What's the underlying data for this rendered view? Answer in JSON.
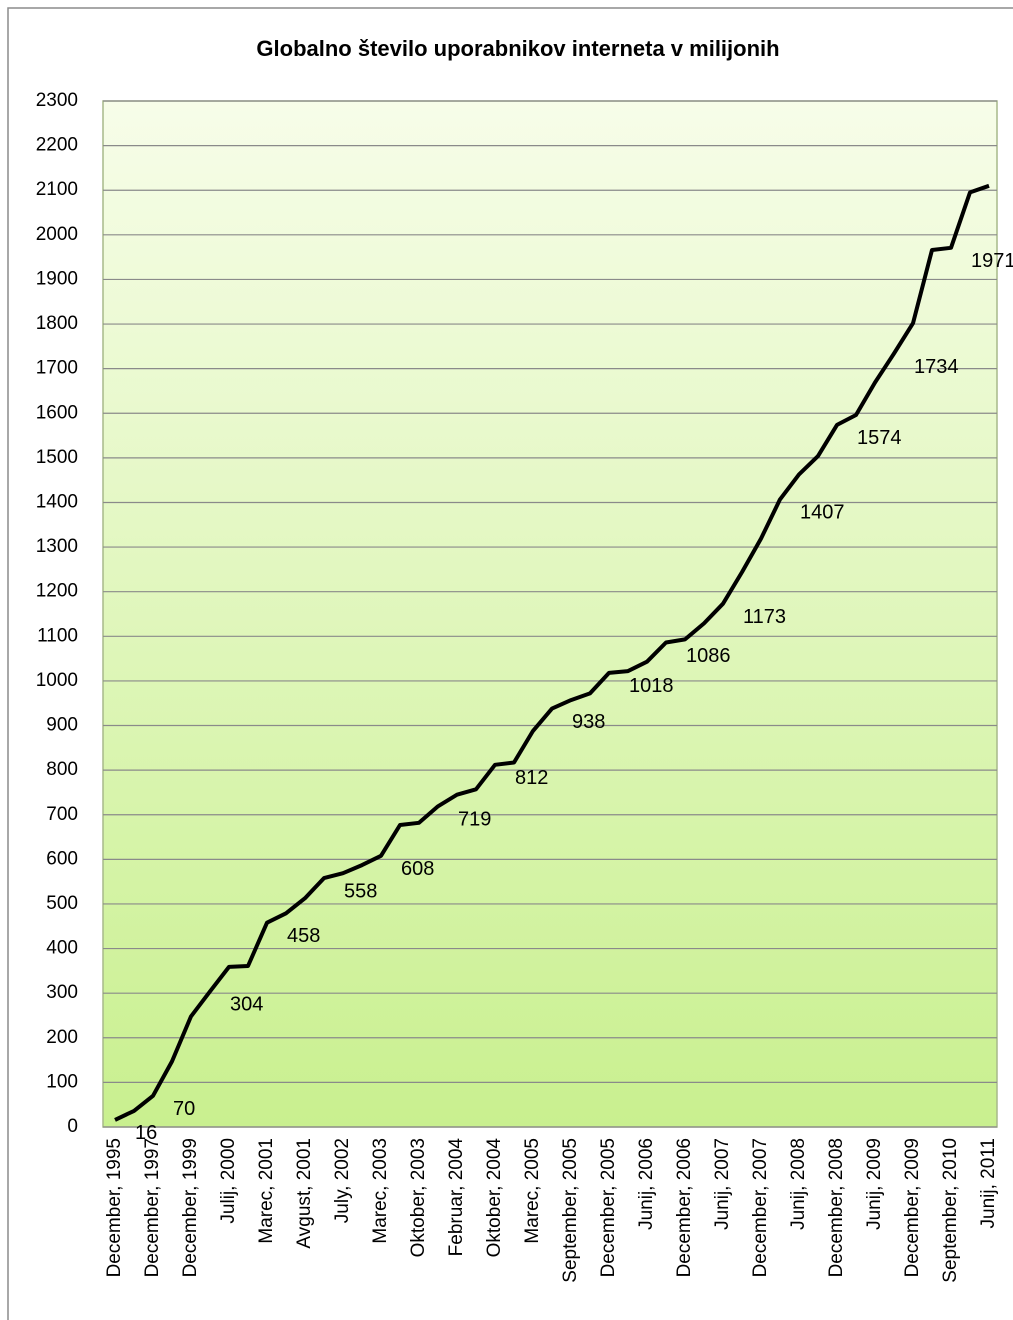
{
  "chart_data": {
    "type": "line",
    "title": "Globalno število uporabnikov interneta v milijonih",
    "categories": [
      "December, 1995",
      null,
      "December, 1997",
      null,
      "December, 1999",
      null,
      "Julij, 2000",
      null,
      "Marec, 2001",
      null,
      "Avgust, 2001",
      null,
      "July, 2002",
      null,
      "Marec, 2003",
      null,
      "Oktober, 2003",
      null,
      "Februar, 2004",
      null,
      "Oktober, 2004",
      null,
      "Marec, 2005",
      null,
      "September, 2005",
      null,
      "December, 2005",
      null,
      "Junij, 2006",
      null,
      "December, 2006",
      null,
      "Junij, 2007",
      null,
      "December, 2007",
      null,
      "Junij, 2008",
      null,
      "December, 2008",
      null,
      "Junij, 2009",
      null,
      "December, 2009",
      null,
      "September, 2010",
      null,
      "Junij, 2011"
    ],
    "values": [
      16,
      36,
      70,
      147,
      248,
      304,
      359,
      361,
      458,
      479,
      513,
      558,
      569,
      587,
      608,
      677,
      682,
      719,
      745,
      757,
      812,
      817,
      888,
      938,
      957,
      972,
      1018,
      1022,
      1043,
      1086,
      1093,
      1129,
      1173,
      1244,
      1319,
      1407,
      1463,
      1504,
      1574,
      1596,
      1669,
      1734,
      1802,
      1966,
      1971,
      2095,
      2110
    ],
    "value_labels": [
      "16",
      null,
      "70",
      null,
      null,
      "304",
      null,
      null,
      "458",
      null,
      null,
      "558",
      null,
      null,
      "608",
      null,
      null,
      "719",
      null,
      null,
      "812",
      null,
      null,
      "938",
      null,
      null,
      "1018",
      null,
      null,
      "1086",
      null,
      null,
      "1173",
      null,
      null,
      "1407",
      null,
      null,
      "1574",
      null,
      null,
      "1734",
      null,
      null,
      "1971",
      null,
      null
    ],
    "color": "#000000",
    "ylim": [
      0,
      2300
    ],
    "yticks": [
      0,
      100,
      200,
      300,
      400,
      500,
      600,
      700,
      800,
      900,
      1000,
      1100,
      1200,
      1300,
      1400,
      1500,
      1600,
      1700,
      1800,
      1900,
      2000,
      2100,
      2200,
      2300
    ],
    "grid": true
  }
}
